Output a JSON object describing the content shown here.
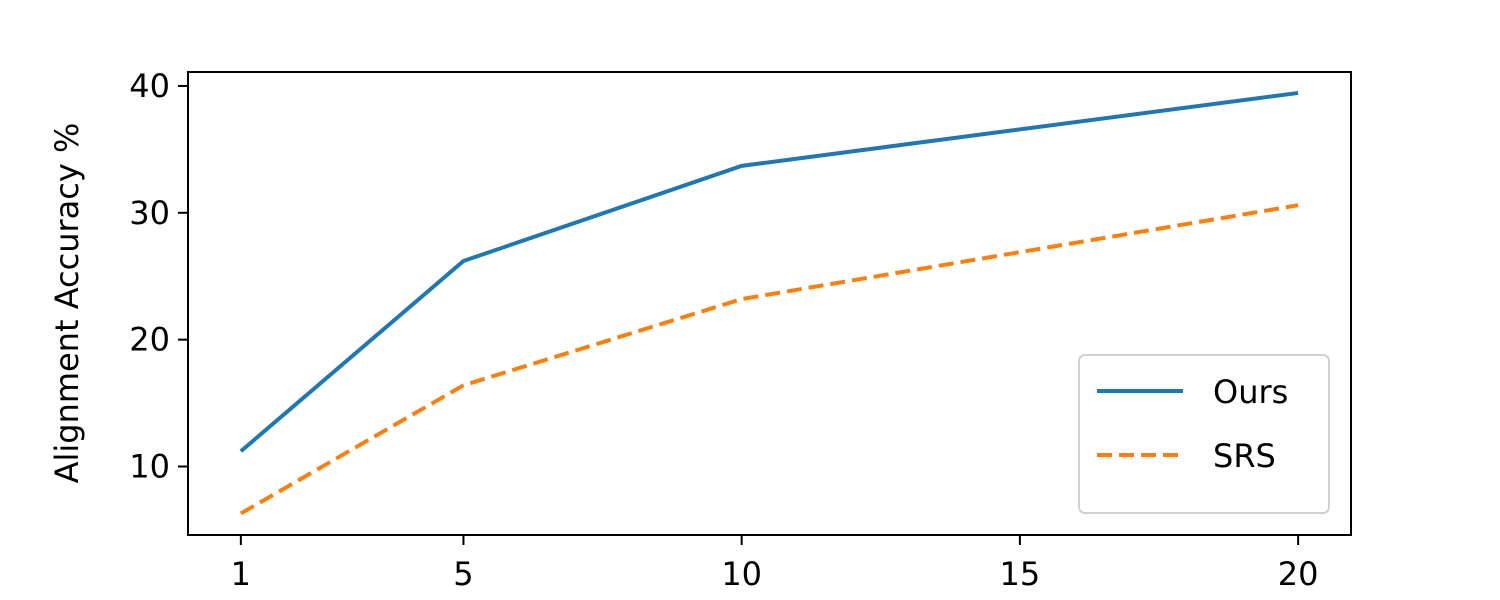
{
  "chart_data": {
    "type": "line",
    "ylabel": "Alignment Accuracy %",
    "x": [
      1,
      5,
      10,
      20
    ],
    "series": [
      {
        "name": "Ours",
        "color": "#1f77b4",
        "dash": "solid",
        "values": [
          11.2,
          26.2,
          33.7,
          39.45
        ]
      },
      {
        "name": "SRS",
        "color": "#ff7f0e",
        "dash": "dashed",
        "values": [
          6.3,
          16.4,
          23.2,
          30.6
        ]
      }
    ],
    "xlim": [
      0.05,
      20.95
    ],
    "xticks": [
      1,
      5,
      10,
      15,
      20
    ],
    "ylim": [
      4.6,
      41.1
    ],
    "yticks": [
      10,
      20,
      30,
      40
    ],
    "grid": false,
    "legend": "lower right"
  }
}
